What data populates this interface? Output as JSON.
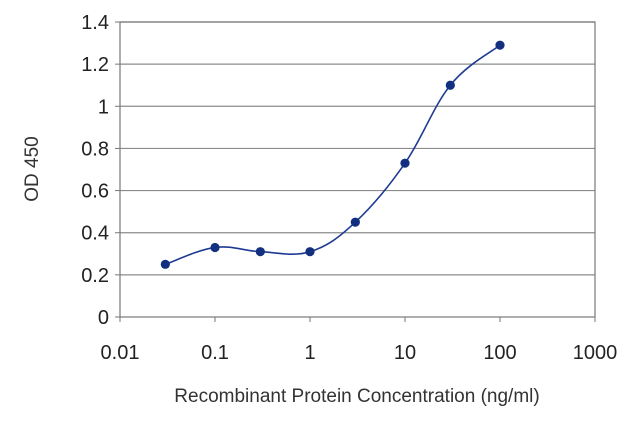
{
  "chart_data": {
    "type": "line",
    "xlabel": "Recombinant Protein Concentration (ng/ml)",
    "ylabel": "OD 450",
    "x_scale": "log",
    "xlim": [
      0.01,
      1000
    ],
    "ylim": [
      0,
      1.4
    ],
    "x_ticks": [
      0.01,
      0.1,
      1,
      10,
      100,
      1000
    ],
    "x_tick_labels": [
      "0.01",
      "0.1",
      "1",
      "10",
      "100",
      "1000"
    ],
    "y_ticks": [
      0,
      0.2,
      0.4,
      0.6,
      0.8,
      1,
      1.2,
      1.4
    ],
    "y_tick_labels": [
      "0",
      "0.2",
      "0.4",
      "0.6",
      "0.8",
      "1",
      "1.2",
      "1.4"
    ],
    "grid": "horizontal",
    "line_color": "#1f3a93",
    "marker_color": "#12307f",
    "series": [
      {
        "x": [
          0.03,
          0.1,
          0.3,
          1,
          3,
          10,
          30,
          100
        ],
        "y": [
          0.25,
          0.33,
          0.31,
          0.31,
          0.45,
          0.73,
          1.1,
          1.29
        ]
      }
    ]
  }
}
